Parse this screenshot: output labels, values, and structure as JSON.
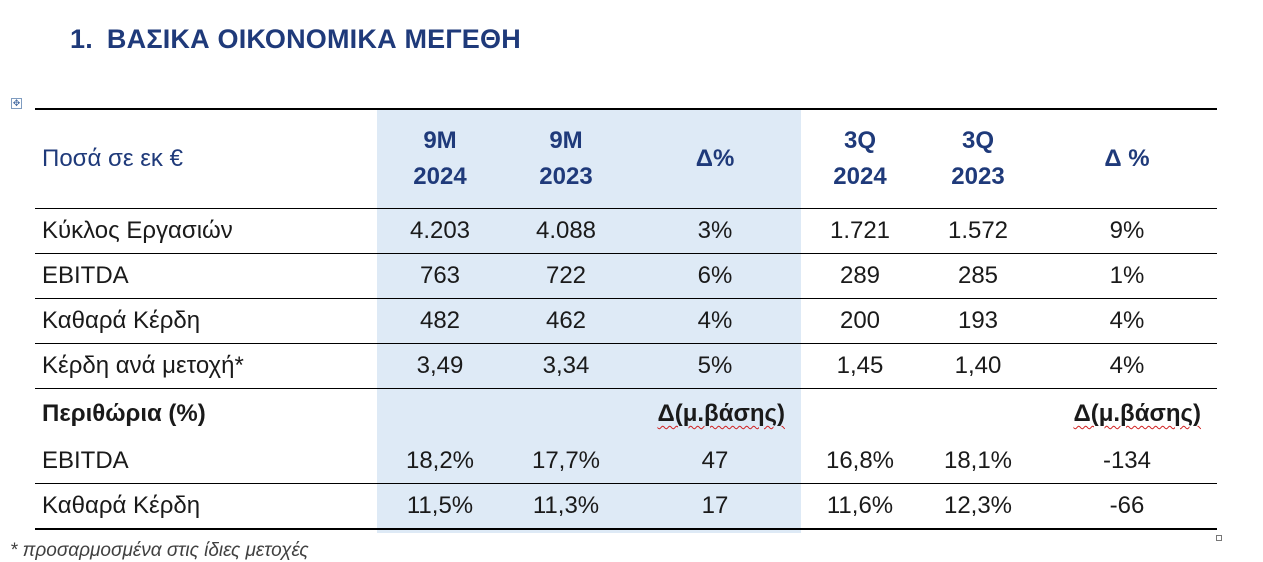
{
  "heading": {
    "number": "1.",
    "title": "ΒΑΣΙΚΑ ΟΙΚΟΝΟΜΙΚΑ ΜΕΓΕΘΗ"
  },
  "table": {
    "header": {
      "label": "Ποσά σε εκ €",
      "columns": [
        {
          "line1": "9M",
          "line2": "2024"
        },
        {
          "line1": "9M",
          "line2": "2023"
        },
        {
          "line1": "Δ%",
          "line2": ""
        },
        {
          "line1": "3Q",
          "line2": "2024"
        },
        {
          "line1": "3Q",
          "line2": "2023"
        },
        {
          "line1": "Δ %",
          "line2": ""
        }
      ]
    },
    "rows": [
      {
        "label": "Κύκλος Εργασιών",
        "values": [
          "4.203",
          "4.088",
          "3%",
          "1.721",
          "1.572",
          "9%"
        ]
      },
      {
        "label": "EBITDA",
        "values": [
          "763",
          "722",
          "6%",
          "289",
          "285",
          "1%"
        ]
      },
      {
        "label": "Καθαρά Κέρδη",
        "values": [
          "482",
          "462",
          "4%",
          "200",
          "193",
          "4%"
        ]
      },
      {
        "label": "Κέρδη ανά μετοχή*",
        "values": [
          "3,49",
          "3,34",
          "5%",
          "1,45",
          "1,40",
          "4%"
        ]
      }
    ],
    "margins_header": {
      "label": "Περιθώρια (%)",
      "delta_9m": "Δ(μ.βάσης)",
      "delta_3q": "Δ(μ.βάσης)"
    },
    "margin_rows": [
      {
        "label": "EBITDA",
        "values": [
          "18,2%",
          "17,7%",
          "47",
          "16,8%",
          "18,1%",
          "-134"
        ]
      },
      {
        "label": "Καθαρά Κέρδη",
        "values": [
          "11,5%",
          "11,3%",
          "17",
          "11,6%",
          "12,3%",
          "-66"
        ]
      }
    ]
  },
  "footnote": "* προσαρμοσμένα στις ίδιες μετοχές",
  "colors": {
    "heading": "#1f3a7a",
    "shade": "#deeaf6",
    "spellcheck": "#d02020"
  }
}
